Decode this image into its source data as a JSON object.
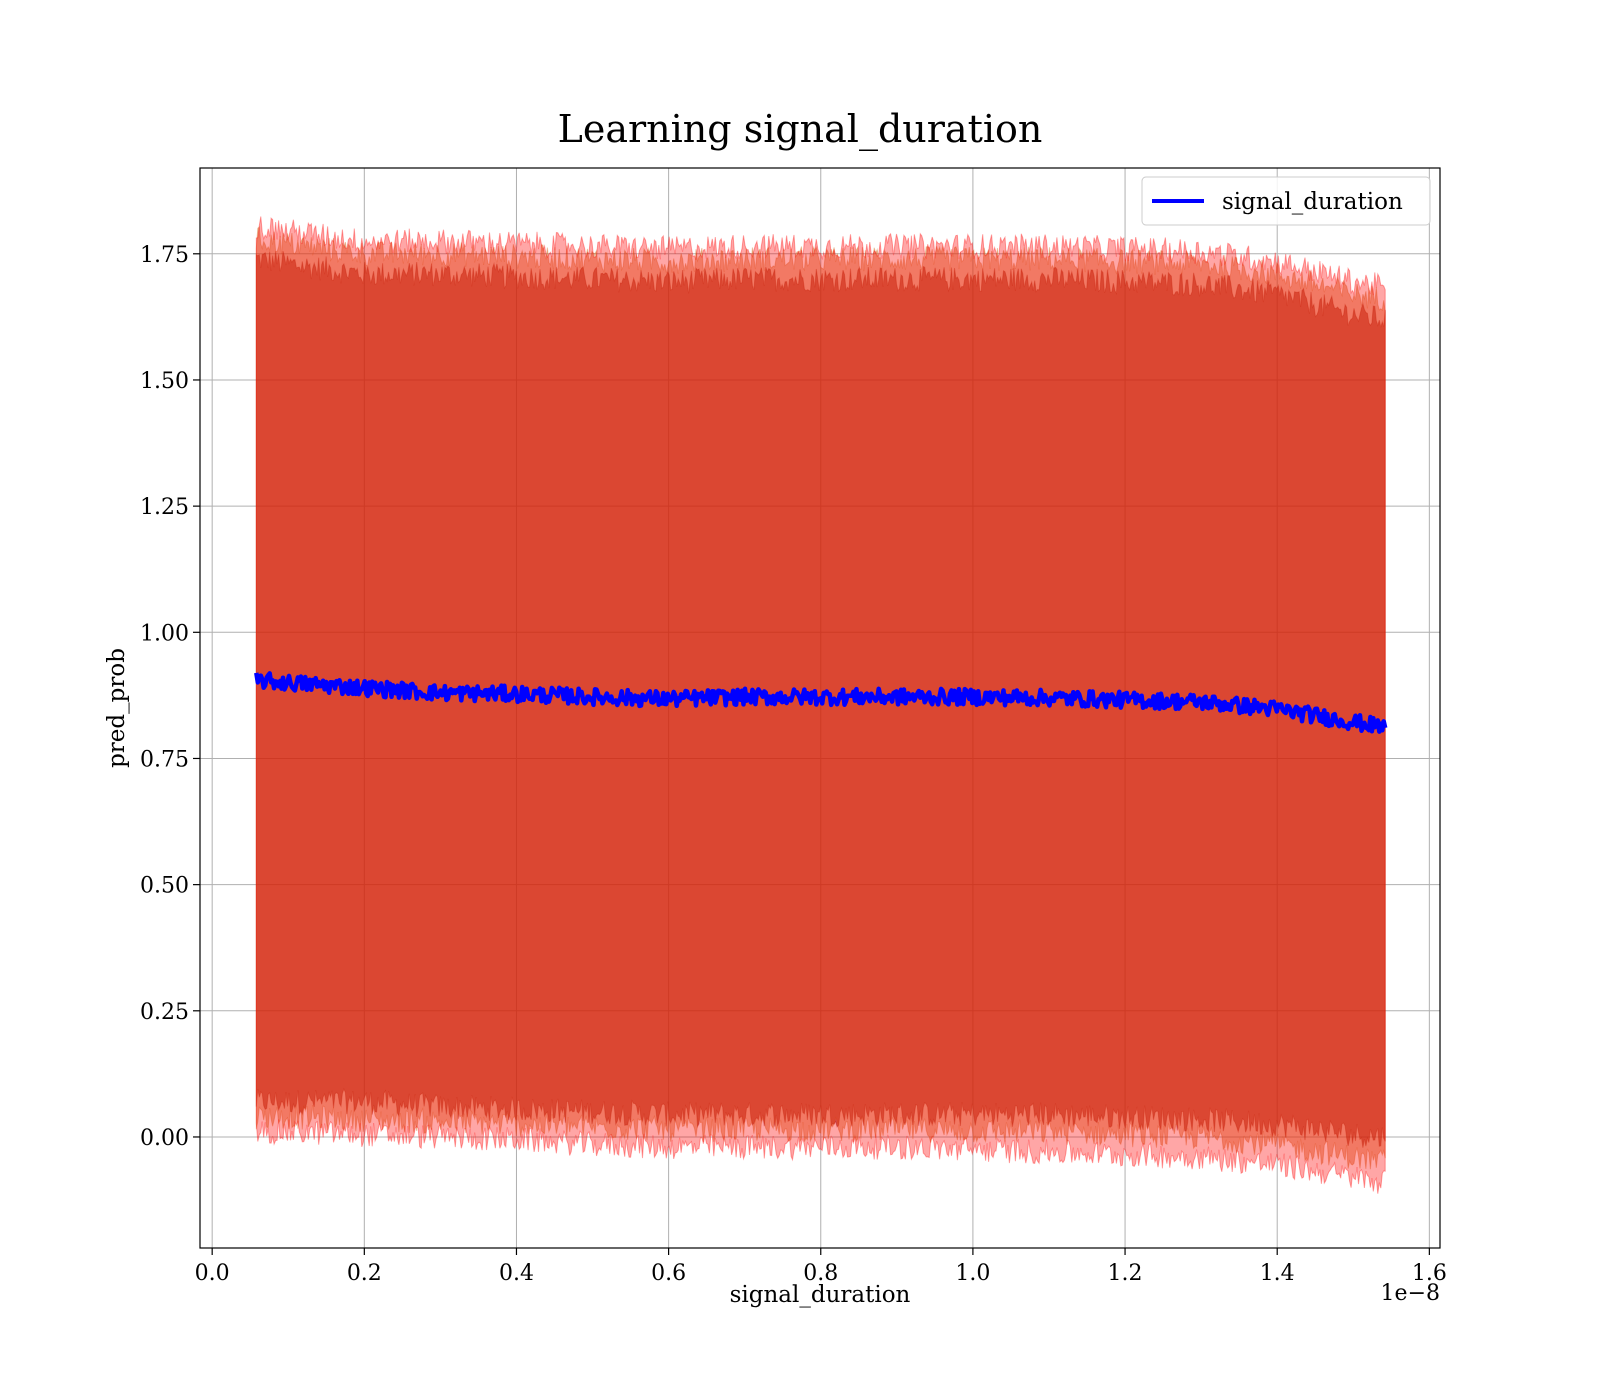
{
  "chart_data": {
    "type": "line",
    "title": "Learning signal_duration",
    "xlabel": "signal_duration",
    "ylabel": "pred_prob",
    "x_offset_label": "1e−8",
    "xlim": [
      -0.016,
      1.614
    ],
    "ylim": [
      -0.22,
      1.92
    ],
    "x_ticks": [
      0.0,
      0.2,
      0.4,
      0.6,
      0.8,
      1.0,
      1.2,
      1.4,
      1.6
    ],
    "x_tick_labels": [
      "0.0",
      "0.2",
      "0.4",
      "0.6",
      "0.8",
      "1.0",
      "1.2",
      "1.4",
      "1.6"
    ],
    "y_ticks": [
      0.0,
      0.25,
      0.5,
      0.75,
      1.0,
      1.25,
      1.5,
      1.75
    ],
    "y_tick_labels": [
      "0.00",
      "0.25",
      "0.50",
      "0.75",
      "1.00",
      "1.25",
      "1.50",
      "1.75"
    ],
    "grid": true,
    "legend": {
      "position": "top-right",
      "entries": [
        "signal_duration"
      ]
    },
    "x_range": [
      0.058,
      1.542
    ],
    "series": [
      {
        "name": "signal_duration",
        "color": "#0000ff",
        "x": [
          0.058,
          0.1,
          0.2,
          0.3,
          0.4,
          0.5,
          0.6,
          0.7,
          0.8,
          0.9,
          1.0,
          1.1,
          1.2,
          1.3,
          1.4,
          1.5,
          1.542
        ],
        "y": [
          0.905,
          0.9,
          0.89,
          0.88,
          0.878,
          0.872,
          0.868,
          0.872,
          0.872,
          0.872,
          0.872,
          0.87,
          0.866,
          0.862,
          0.848,
          0.822,
          0.812
        ]
      }
    ],
    "bands": [
      {
        "color": "#8b0000",
        "opacity": 0.55,
        "upper": [
          1.74,
          1.73,
          1.71,
          1.71,
          1.705,
          1.7,
          1.695,
          1.7,
          1.7,
          1.7,
          1.7,
          1.7,
          1.695,
          1.69,
          1.67,
          1.63,
          1.62
        ],
        "lower": [
          0.07,
          0.07,
          0.07,
          0.06,
          0.055,
          0.05,
          0.045,
          0.045,
          0.045,
          0.045,
          0.045,
          0.045,
          0.04,
          0.035,
          0.025,
          0.005,
          0.0
        ]
      },
      {
        "color": "#d2691e",
        "opacity": 0.45,
        "upper": [
          1.78,
          1.77,
          1.75,
          1.75,
          1.745,
          1.74,
          1.735,
          1.74,
          1.74,
          1.74,
          1.74,
          1.74,
          1.735,
          1.73,
          1.71,
          1.67,
          1.66
        ],
        "lower": [
          0.04,
          0.04,
          0.035,
          0.03,
          0.025,
          0.02,
          0.015,
          0.015,
          0.015,
          0.015,
          0.012,
          0.01,
          0.005,
          0.0,
          -0.015,
          -0.04,
          -0.05
        ]
      },
      {
        "color": "#ff0000",
        "opacity": 0.35,
        "upper": [
          1.805,
          1.795,
          1.775,
          1.775,
          1.77,
          1.765,
          1.76,
          1.765,
          1.765,
          1.765,
          1.765,
          1.765,
          1.76,
          1.755,
          1.735,
          1.695,
          1.685
        ],
        "lower": [
          0.01,
          0.01,
          0.005,
          0.0,
          -0.005,
          -0.015,
          -0.02,
          -0.02,
          -0.02,
          -0.02,
          -0.025,
          -0.03,
          -0.035,
          -0.04,
          -0.055,
          -0.08,
          -0.09
        ]
      }
    ]
  }
}
